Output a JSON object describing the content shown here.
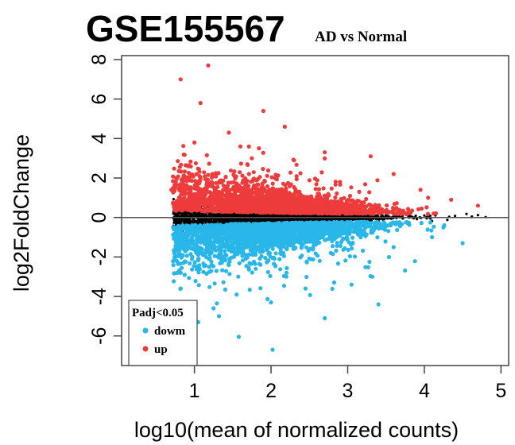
{
  "chart_data": {
    "type": "scatter",
    "title": "GSE155567",
    "subtitle": "AD vs Normal",
    "xlabel": "log10(mean of normalized counts)",
    "ylabel": "log2FoldChange",
    "xlim": [
      0.05,
      5.1
    ],
    "ylim": [
      -7.5,
      8.2
    ],
    "x_ticks": [
      1,
      2,
      3,
      4,
      5
    ],
    "y_ticks": [
      -6,
      -4,
      -2,
      0,
      2,
      4,
      6,
      8
    ],
    "x_tick_labels": [
      "1",
      "2",
      "3",
      "4",
      "5"
    ],
    "y_tick_labels": [
      "-6",
      "-4",
      "-2",
      "0",
      "2",
      "4",
      "6",
      "8"
    ],
    "reference_line_y": 0,
    "grid": false,
    "legend": {
      "title": "Padj<0.05",
      "placement": "bottom-left",
      "entries": [
        {
          "label": "dowm",
          "color": "#29b6e8"
        },
        {
          "label": "up",
          "color": "#ee3b3b"
        }
      ]
    },
    "series": [
      {
        "name": "up",
        "color": "#ee3b3b",
        "points": [
          [
            1.18,
            7.7
          ],
          [
            0.82,
            7.0
          ],
          [
            1.08,
            5.8
          ],
          [
            1.9,
            5.4
          ],
          [
            2.18,
            4.6
          ],
          [
            1.45,
            4.3
          ],
          [
            1.0,
            3.8
          ],
          [
            2.7,
            3.3
          ],
          [
            3.3,
            3.1
          ],
          [
            1.6,
            3.6
          ],
          [
            2.3,
            2.9
          ],
          [
            0.92,
            2.6
          ],
          [
            1.75,
            3.0
          ],
          [
            0.7,
            1.4
          ],
          [
            3.6,
            2.2
          ],
          [
            3.95,
            1.4
          ],
          [
            4.35,
            0.9
          ],
          [
            4.7,
            0.6
          ],
          [
            4.05,
            1.0
          ],
          [
            2.9,
            1.8
          ],
          [
            3.15,
            1.3
          ]
        ],
        "generated": {
          "count": 2300,
          "seed": 101
        }
      },
      {
        "name": "dowm",
        "color": "#29b6e8",
        "points": [
          [
            2.02,
            -6.7
          ],
          [
            1.32,
            -5.0
          ],
          [
            2.7,
            -5.1
          ],
          [
            3.4,
            -4.4
          ],
          [
            1.05,
            -5.3
          ],
          [
            1.25,
            -4.6
          ],
          [
            2.0,
            -4.3
          ],
          [
            2.45,
            -3.6
          ],
          [
            3.05,
            -3.4
          ],
          [
            1.55,
            -3.9
          ],
          [
            2.2,
            -3.0
          ],
          [
            3.6,
            -1.5
          ],
          [
            4.1,
            -1.0
          ],
          [
            4.5,
            -1.3
          ],
          [
            4.25,
            -0.5
          ],
          [
            1.8,
            -2.6
          ],
          [
            0.82,
            -3.6
          ]
        ],
        "generated": {
          "count": 2300,
          "seed": 202
        }
      },
      {
        "name": "",
        "color": "#000000",
        "points": [
          [
            4.62,
            0.05
          ],
          [
            4.7,
            0.12
          ],
          [
            4.8,
            0.02
          ],
          [
            4.55,
            0.18
          ],
          [
            4.3,
            -0.12
          ],
          [
            4.4,
            0.08
          ],
          [
            4.1,
            -0.18
          ],
          [
            4.0,
            0.1
          ]
        ],
        "generated": {
          "count": 3200,
          "seed": 303
        }
      }
    ]
  }
}
